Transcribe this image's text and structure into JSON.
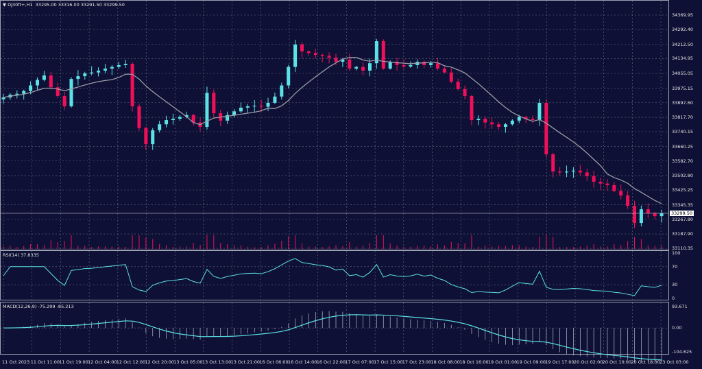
{
  "header": {
    "symbol": "DJ30ft+,H1",
    "ohlc": "33295.00 33316.00 33291.50 33299.50"
  },
  "colors": {
    "background": "#0e1135",
    "bull": "#5ce1e6",
    "bear": "#f0105a",
    "ma": "#9a9aa6",
    "indicator": "#5ce1e6",
    "grid": "#6a6f8a"
  },
  "price_axis": [
    "34369.95",
    "34292.40",
    "34212.50",
    "34134.95",
    "34055.05",
    "33975.15",
    "33897.60",
    "33817.70",
    "33740.15",
    "33660.25",
    "33582.70",
    "33502.80",
    "33425.25",
    "33345.35",
    "33267.80",
    "33187.90",
    "33110.35"
  ],
  "current_price": "33299.50",
  "rsi": {
    "label": "RSI(14) 37.8335",
    "axis": [
      "100",
      "70",
      "30",
      "0"
    ]
  },
  "macd": {
    "label": "MACD(12,26,9) -75.299 -85.213",
    "axis": [
      "93.671",
      "0.00",
      "-104.625"
    ]
  },
  "time_axis": [
    "11 Oct 2023",
    "11 Oct 11:00",
    "11 Oct 19:00",
    "12 Oct 04:00",
    "12 Oct 12:00",
    "12 Oct 20:00",
    "13 Oct 05:00",
    "13 Oct 13:00",
    "13 Oct 21:00",
    "16 Oct 06:00",
    "16 Oct 14:00",
    "16 Oct 22:00",
    "17 Oct 07:00",
    "17 Oct 15:00",
    "17 Oct 23:00",
    "18 Oct 08:00",
    "18 Oct 16:00",
    "19 Oct 01:00",
    "19 Oct 09:00",
    "19 Oct 17:00",
    "20 Oct 02:00",
    "20 Oct 10:00",
    "20 Oct 18:00",
    "23 Oct 03:00"
  ],
  "chart_data": {
    "type": "candlestick",
    "symbol": "DJ30ft+",
    "timeframe": "H1",
    "ylim": [
      33110.35,
      34369.95
    ],
    "moving_average": true,
    "closes": [
      33925,
      33940,
      33945,
      33960,
      33990,
      34020,
      34044,
      33980,
      33933,
      33877,
      34025,
      34040,
      34055,
      34060,
      34070,
      34081,
      34090,
      34100,
      34107,
      33877,
      33760,
      33673,
      33748,
      33780,
      33803,
      33810,
      33820,
      33830,
      33790,
      33766,
      33950,
      33840,
      33800,
      33830,
      33850,
      33870,
      33877,
      33880,
      33875,
      33896,
      33930,
      33990,
      34090,
      34211,
      34174,
      34165,
      34155,
      34150,
      34140,
      34118,
      34130,
      34081,
      34090,
      34070,
      34110,
      34229,
      34081,
      34118,
      34100,
      34092,
      34100,
      34118,
      34100,
      34110,
      34081,
      34060,
      34010,
      33970,
      33933,
      33803,
      33810,
      33790,
      33780,
      33766,
      33780,
      33800,
      33820,
      33810,
      33803,
      33896,
      33618,
      33525,
      33520,
      33525,
      33530,
      33520,
      33500,
      33470,
      33460,
      33451,
      33420,
      33396,
      33340,
      33247,
      33321,
      33300,
      33284,
      33299.5
    ]
  }
}
